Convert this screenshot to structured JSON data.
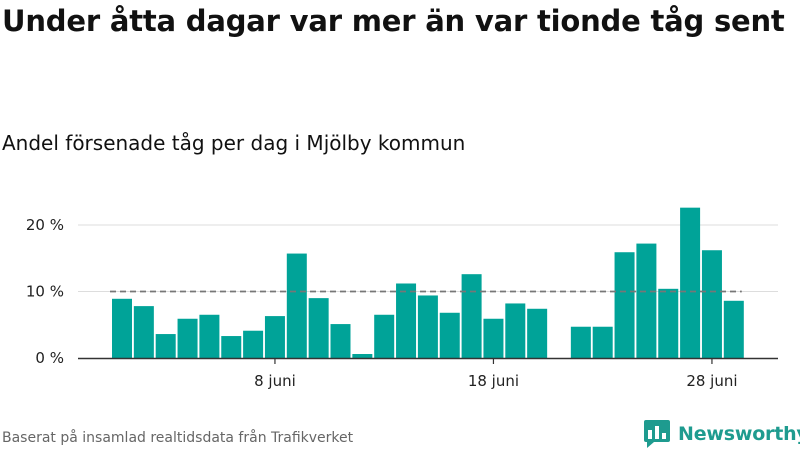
{
  "title": "Under åtta dagar var mer än var tionde tåg sent",
  "subtitle": "Andel försenade tåg per dag i Mjölby kommun",
  "source": "Baserat på insamlad realtidsdata från Trafikverket",
  "brand": {
    "name": "Newsworthy",
    "icon": "bar-chart-logo-icon",
    "color": "#1e9b8f"
  },
  "colors": {
    "bar": "#00a398",
    "reference": "#777777",
    "axis": "#333333",
    "grid": "#dddddd"
  },
  "chart_data": {
    "type": "bar",
    "x": [
      "2020-06-01",
      "2020-06-02",
      "2020-06-03",
      "2020-06-04",
      "2020-06-05",
      "2020-06-06",
      "2020-06-07",
      "2020-06-08",
      "2020-06-09",
      "2020-06-10",
      "2020-06-11",
      "2020-06-12",
      "2020-06-13",
      "2020-06-14",
      "2020-06-15",
      "2020-06-16",
      "2020-06-17",
      "2020-06-18",
      "2020-06-19",
      "2020-06-20",
      "2020-06-21",
      "2020-06-22",
      "2020-06-23",
      "2020-06-24",
      "2020-06-25",
      "2020-06-26",
      "2020-06-27",
      "2020-06-28",
      "2020-06-29"
    ],
    "values": [
      8.9,
      7.8,
      3.6,
      5.9,
      6.5,
      3.3,
      4.1,
      6.3,
      15.7,
      9.0,
      5.1,
      0.6,
      6.5,
      11.2,
      9.4,
      6.8,
      12.6,
      5.9,
      8.2,
      7.4,
      null,
      4.7,
      4.7,
      15.9,
      17.2,
      10.4,
      22.6,
      16.2,
      8.6
    ],
    "reference_line": 10,
    "yticks": [
      {
        "value": 0,
        "label": "0 %"
      },
      {
        "value": 10,
        "label": "10 %"
      },
      {
        "value": 20,
        "label": "20 %"
      }
    ],
    "xticks": [
      {
        "x": "2020-06-08",
        "label": "8 juni"
      },
      {
        "x": "2020-06-18",
        "label": "18 juni"
      },
      {
        "x": "2020-06-28",
        "label": "28 juni"
      }
    ],
    "ylim": [
      0,
      23
    ],
    "grid": true,
    "xlabel": "",
    "ylabel": ""
  }
}
